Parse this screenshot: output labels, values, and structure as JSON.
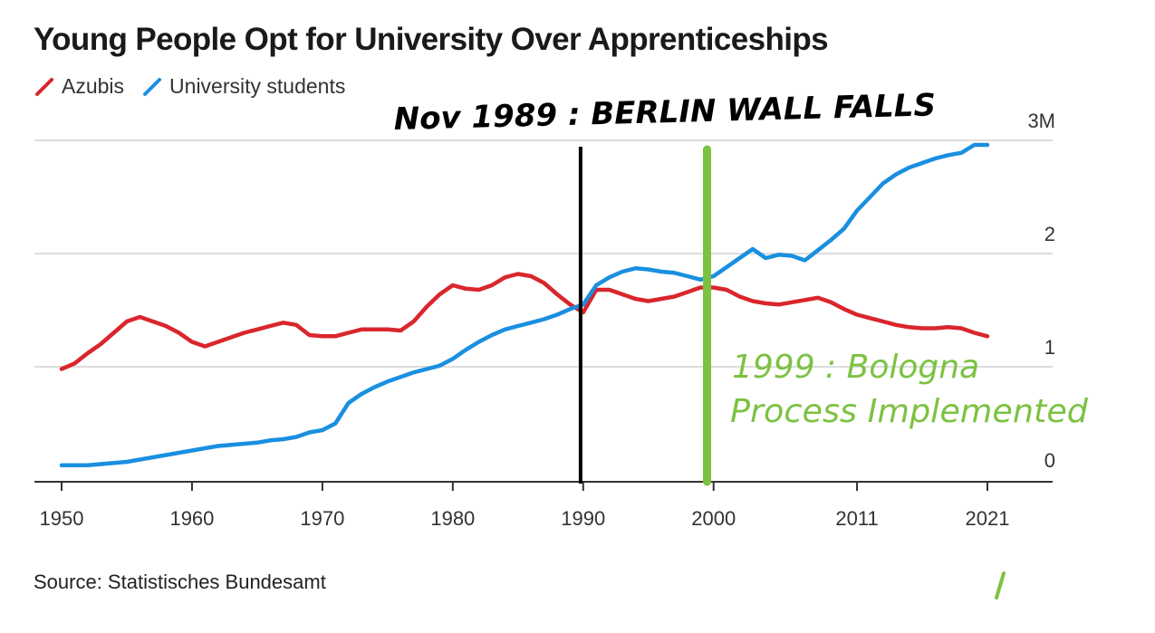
{
  "chart_data": {
    "type": "line",
    "title": "Young People Opt for University Over Apprenticeships",
    "source": "Source: Statistisches Bundesamt",
    "x_ticks": [
      "1950",
      "1960",
      "1970",
      "1980",
      "1990",
      "2000",
      "2011",
      "2021"
    ],
    "x_tick_values": [
      1950,
      1960,
      1970,
      1980,
      1990,
      2000,
      2011,
      2021
    ],
    "y_ticks": [
      "0",
      "1",
      "2",
      "3M"
    ],
    "y_tick_values": [
      0,
      1,
      2,
      3
    ],
    "ylim": [
      0,
      3
    ],
    "xlim": [
      1950,
      2021
    ],
    "grid": true,
    "legend_position": "top-left",
    "series": [
      {
        "name": "Azubis",
        "color": "#d9262c",
        "x": [
          1950,
          1951,
          1952,
          1953,
          1954,
          1955,
          1956,
          1957,
          1958,
          1959,
          1960,
          1961,
          1962,
          1963,
          1964,
          1965,
          1966,
          1967,
          1968,
          1969,
          1970,
          1971,
          1972,
          1973,
          1974,
          1975,
          1976,
          1977,
          1978,
          1979,
          1980,
          1981,
          1982,
          1983,
          1984,
          1985,
          1986,
          1987,
          1988,
          1989,
          1990,
          1991,
          1992,
          1993,
          1994,
          1995,
          1996,
          1997,
          1998,
          1999,
          2000,
          2001,
          2002,
          2003,
          2004,
          2005,
          2006,
          2007,
          2008,
          2009,
          2010,
          2011,
          2012,
          2013,
          2014,
          2015,
          2016,
          2017,
          2018,
          2019,
          2020,
          2021
        ],
        "values": [
          0.98,
          1.03,
          1.12,
          1.2,
          1.3,
          1.4,
          1.44,
          1.4,
          1.36,
          1.3,
          1.22,
          1.18,
          1.22,
          1.26,
          1.3,
          1.33,
          1.36,
          1.39,
          1.37,
          1.28,
          1.27,
          1.27,
          1.3,
          1.33,
          1.33,
          1.33,
          1.32,
          1.4,
          1.53,
          1.64,
          1.72,
          1.69,
          1.68,
          1.72,
          1.79,
          1.82,
          1.8,
          1.74,
          1.64,
          1.55,
          1.48,
          1.68,
          1.68,
          1.64,
          1.6,
          1.58,
          1.6,
          1.62,
          1.66,
          1.7,
          1.7,
          1.68,
          1.62,
          1.58,
          1.56,
          1.55,
          1.57,
          1.59,
          1.61,
          1.57,
          1.51,
          1.46,
          1.43,
          1.4,
          1.37,
          1.35,
          1.34,
          1.34,
          1.35,
          1.34,
          1.3,
          1.27
        ]
      },
      {
        "name": "University students",
        "color": "#1a8fe0",
        "x": [
          1950,
          1951,
          1952,
          1953,
          1954,
          1955,
          1956,
          1957,
          1958,
          1959,
          1960,
          1961,
          1962,
          1963,
          1964,
          1965,
          1966,
          1967,
          1968,
          1969,
          1970,
          1971,
          1972,
          1973,
          1974,
          1975,
          1976,
          1977,
          1978,
          1979,
          1980,
          1981,
          1982,
          1983,
          1984,
          1985,
          1986,
          1987,
          1988,
          1989,
          1990,
          1991,
          1992,
          1993,
          1994,
          1995,
          1996,
          1997,
          1998,
          1999,
          2000,
          2001,
          2002,
          2003,
          2004,
          2005,
          2006,
          2007,
          2008,
          2009,
          2010,
          2011,
          2012,
          2013,
          2014,
          2015,
          2016,
          2017,
          2018,
          2019,
          2020,
          2021
        ],
        "values": [
          0.13,
          0.13,
          0.13,
          0.14,
          0.15,
          0.16,
          0.18,
          0.2,
          0.22,
          0.24,
          0.26,
          0.28,
          0.3,
          0.31,
          0.32,
          0.33,
          0.35,
          0.36,
          0.38,
          0.42,
          0.44,
          0.5,
          0.68,
          0.76,
          0.82,
          0.87,
          0.91,
          0.95,
          0.98,
          1.01,
          1.07,
          1.15,
          1.22,
          1.28,
          1.33,
          1.36,
          1.39,
          1.42,
          1.46,
          1.51,
          1.55,
          1.72,
          1.79,
          1.84,
          1.87,
          1.86,
          1.84,
          1.83,
          1.8,
          1.77,
          1.8,
          1.88,
          1.96,
          2.04,
          1.96,
          1.99,
          1.98,
          1.94,
          2.03,
          2.12,
          2.22,
          2.38,
          2.5,
          2.62,
          2.7,
          2.76,
          2.8,
          2.84,
          2.87,
          2.89,
          2.96,
          2.96
        ]
      }
    ],
    "annotations": [
      {
        "text": "Nov 1989 : BERLIN WALL FALLS",
        "x": 1989.8,
        "color": "#000000"
      },
      {
        "text_lines": [
          "1999 : Bologna",
          "Process Implemented"
        ],
        "x": 1999.5,
        "color": "#7cc242"
      }
    ]
  }
}
